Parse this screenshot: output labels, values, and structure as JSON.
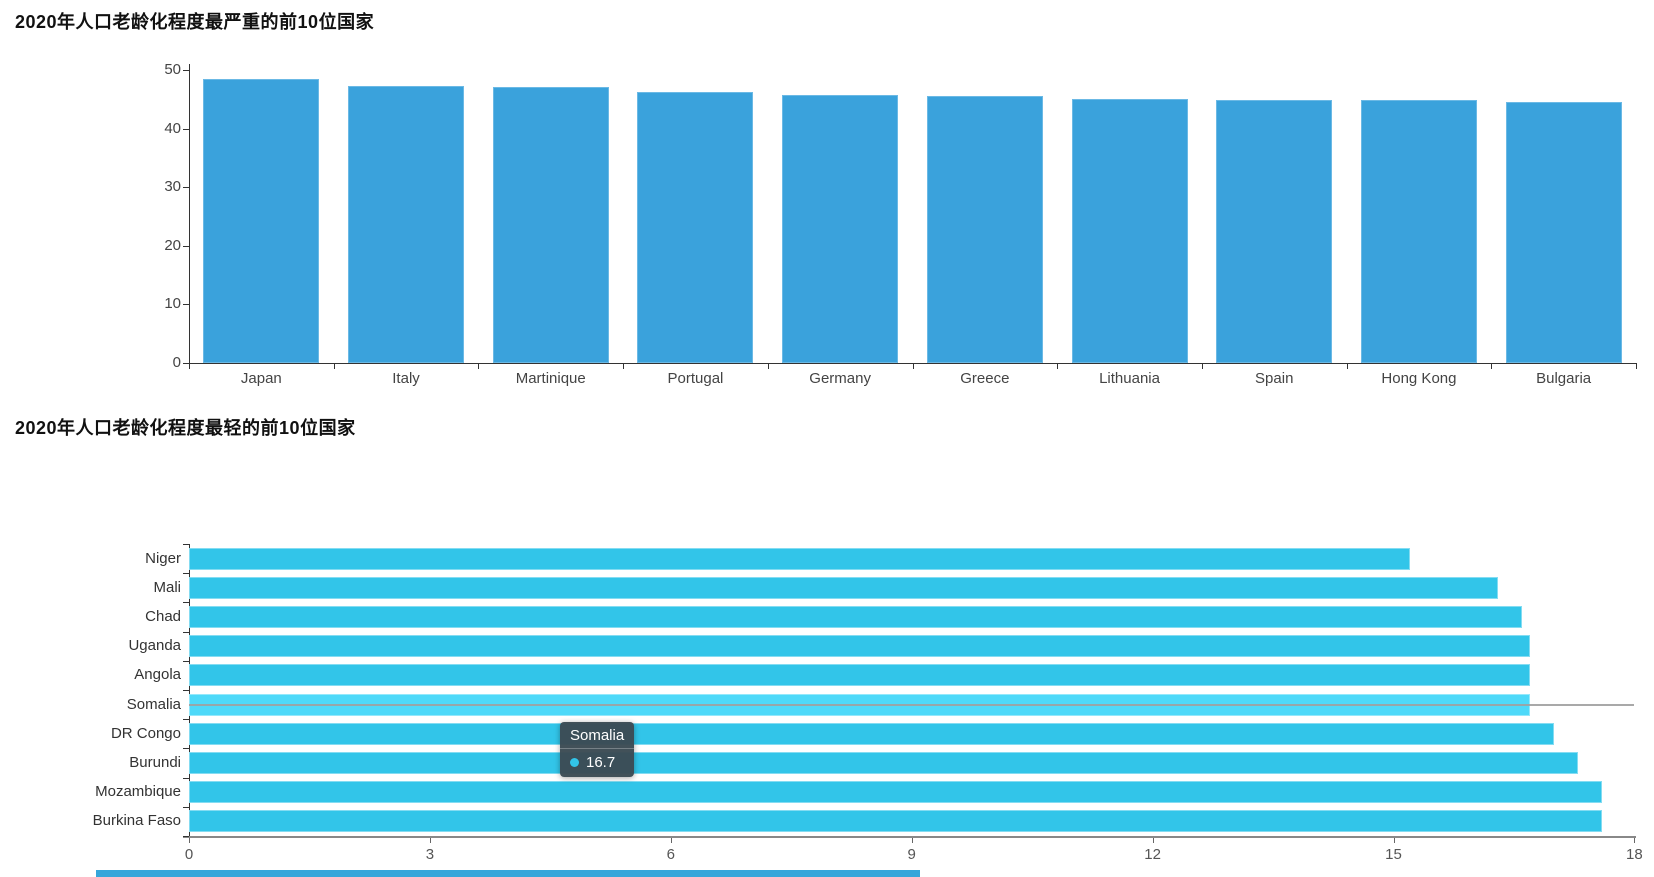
{
  "page": {
    "background": "#ffffff"
  },
  "colors": {
    "bar_blue": "#3aa2dc",
    "bar_cyan": "#32c5e9",
    "bar_highlight": "#4ed9f9",
    "tooltip_bg": "#3c4b54",
    "axis_dark": "#333333",
    "axis_gray": "#888888",
    "crosshair_gray": "#a0a0a0",
    "label_gray": "#444444"
  },
  "chart_data": [
    {
      "type": "bar",
      "orientation": "vertical",
      "title": "2020年人口老龄化程度最严重的前10位国家",
      "categories": [
        "Japan",
        "Italy",
        "Martinique",
        "Portugal",
        "Germany",
        "Greece",
        "Lithuania",
        "Spain",
        "Hong Kong",
        "Bulgaria"
      ],
      "values": [
        48.4,
        47.3,
        47.1,
        46.2,
        45.7,
        45.6,
        45.1,
        44.9,
        44.8,
        44.6
      ],
      "xlabel": "",
      "ylabel": "",
      "ylim": [
        0,
        50
      ],
      "yticks": [
        0,
        10,
        20,
        30,
        40,
        50
      ],
      "bar_color": "#3aa2dc",
      "grid": false,
      "legend": false
    },
    {
      "type": "bar",
      "orientation": "horizontal",
      "title": "2020年人口老龄化程度最轻的前10位国家",
      "categories": [
        "Niger",
        "Mali",
        "Chad",
        "Uganda",
        "Angola",
        "Somalia",
        "DR Congo",
        "Burundi",
        "Mozambique",
        "Burkina Faso"
      ],
      "values": [
        15.2,
        16.3,
        16.6,
        16.7,
        16.7,
        16.7,
        17.0,
        17.3,
        17.6,
        17.6
      ],
      "xlabel": "",
      "ylabel": "",
      "xlim": [
        0,
        18
      ],
      "xticks": [
        0,
        3,
        6,
        9,
        12,
        15,
        18
      ],
      "bar_color": "#32c5e9",
      "highlight": {
        "category": "Somalia",
        "value": 16.7,
        "color": "#4ed9f9"
      },
      "tooltip": {
        "title": "Somalia",
        "value": "16.7"
      },
      "grid": false,
      "legend": false
    }
  ]
}
